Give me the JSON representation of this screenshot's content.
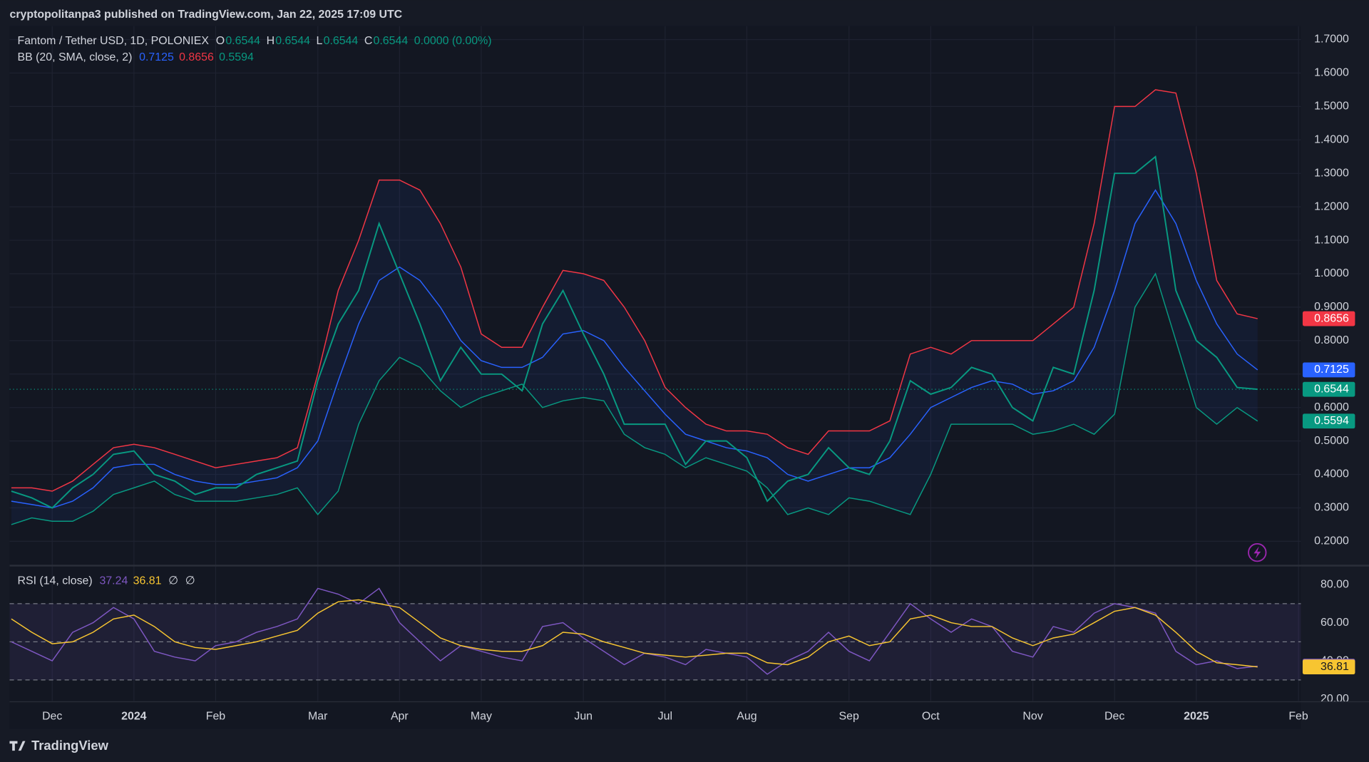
{
  "header": {
    "published": "cryptopolitanpa3 published on TradingView.com, Jan 22, 2025 17:09 UTC"
  },
  "legend": {
    "symbol": "Fantom / Tether USD, 1D, POLONIEX",
    "fields": [
      {
        "label": "O",
        "value": 0.6544
      },
      {
        "label": "H",
        "value": 0.6544
      },
      {
        "label": "L",
        "value": 0.6544
      },
      {
        "label": "C",
        "value": 0.6544
      }
    ],
    "change": "0.0000 (0.00%)",
    "indicator": "BB (20, SMA, close, 2)"
  },
  "rsi_legend": {
    "indicator": "RSI (14, close)",
    "extras": [
      "∅",
      "∅"
    ]
  },
  "footer": {
    "brand": "TradingView"
  },
  "chart_data": [
    {
      "type": "line",
      "ylim": [
        0.13,
        1.74
      ],
      "yticks": [
        {
          "value": 1.7,
          "label": "1.7000"
        },
        {
          "value": 1.6,
          "label": "1.6000"
        },
        {
          "value": 1.5,
          "label": "1.5000"
        },
        {
          "value": 1.4,
          "label": "1.4000"
        },
        {
          "value": 1.3,
          "label": "1.3000"
        },
        {
          "value": 1.2,
          "label": "1.2000"
        },
        {
          "value": 1.1,
          "label": "1.1000"
        },
        {
          "value": 1.0,
          "label": "1.0000"
        },
        {
          "value": 0.9,
          "label": "0.9000"
        },
        {
          "value": 0.8,
          "label": "0.8000"
        },
        {
          "value": 0.7,
          "label": "0.7000"
        },
        {
          "value": 0.6,
          "label": "0.6000"
        },
        {
          "value": 0.5,
          "label": "0.5000"
        },
        {
          "value": 0.4,
          "label": "0.4000"
        },
        {
          "value": 0.3,
          "label": "0.3000"
        },
        {
          "value": 0.2,
          "label": "0.2000"
        }
      ],
      "grid": true,
      "band_fill": "rgba(41,98,255,0.07)",
      "series": [
        {
          "color": "#089981",
          "values": [
            0.35,
            0.33,
            0.3,
            0.36,
            0.4,
            0.46,
            0.47,
            0.4,
            0.38,
            0.34,
            0.36,
            0.36,
            0.4,
            0.42,
            0.44,
            0.68,
            0.85,
            0.95,
            1.15,
            1.0,
            0.85,
            0.68,
            0.78,
            0.7,
            0.7,
            0.65,
            0.85,
            0.95,
            0.82,
            0.7,
            0.55,
            0.55,
            0.55,
            0.43,
            0.5,
            0.5,
            0.45,
            0.32,
            0.38,
            0.4,
            0.48,
            0.42,
            0.4,
            0.5,
            0.68,
            0.64,
            0.66,
            0.72,
            0.7,
            0.6,
            0.56,
            0.72,
            0.7,
            0.95,
            1.3,
            1.3,
            1.35,
            0.95,
            0.8,
            0.75,
            0.66,
            0.6544,
            null,
            null
          ]
        },
        {
          "color": "#f23645",
          "values": [
            0.36,
            0.36,
            0.35,
            0.38,
            0.43,
            0.48,
            0.49,
            0.48,
            0.46,
            0.44,
            0.42,
            0.43,
            0.44,
            0.45,
            0.48,
            0.7,
            0.95,
            1.1,
            1.28,
            1.28,
            1.25,
            1.15,
            1.02,
            0.82,
            0.78,
            0.78,
            0.9,
            1.01,
            1.0,
            0.98,
            0.9,
            0.8,
            0.66,
            0.6,
            0.55,
            0.53,
            0.53,
            0.52,
            0.48,
            0.46,
            0.53,
            0.53,
            0.53,
            0.56,
            0.76,
            0.78,
            0.76,
            0.8,
            0.8,
            0.8,
            0.8,
            0.85,
            0.9,
            1.15,
            1.5,
            1.5,
            1.55,
            1.54,
            1.3,
            0.98,
            0.88,
            0.8656,
            null,
            null
          ]
        },
        {
          "color": "#2962ff",
          "values": [
            0.32,
            0.31,
            0.3,
            0.32,
            0.36,
            0.42,
            0.43,
            0.43,
            0.4,
            0.38,
            0.37,
            0.37,
            0.38,
            0.39,
            0.42,
            0.5,
            0.68,
            0.85,
            0.98,
            1.02,
            0.98,
            0.9,
            0.8,
            0.74,
            0.72,
            0.72,
            0.75,
            0.82,
            0.83,
            0.8,
            0.72,
            0.65,
            0.58,
            0.52,
            0.5,
            0.48,
            0.47,
            0.45,
            0.4,
            0.38,
            0.4,
            0.42,
            0.42,
            0.45,
            0.52,
            0.6,
            0.63,
            0.66,
            0.68,
            0.67,
            0.64,
            0.65,
            0.68,
            0.78,
            0.95,
            1.15,
            1.25,
            1.15,
            0.98,
            0.85,
            0.76,
            0.7125,
            null,
            null
          ]
        },
        {
          "color": "#089981",
          "values": [
            0.25,
            0.27,
            0.26,
            0.26,
            0.29,
            0.34,
            0.36,
            0.38,
            0.34,
            0.32,
            0.32,
            0.32,
            0.33,
            0.34,
            0.36,
            0.28,
            0.35,
            0.55,
            0.68,
            0.75,
            0.72,
            0.65,
            0.6,
            0.63,
            0.65,
            0.67,
            0.6,
            0.62,
            0.63,
            0.62,
            0.52,
            0.48,
            0.46,
            0.42,
            0.45,
            0.43,
            0.41,
            0.36,
            0.28,
            0.3,
            0.28,
            0.33,
            0.32,
            0.3,
            0.28,
            0.4,
            0.55,
            0.55,
            0.55,
            0.55,
            0.52,
            0.53,
            0.55,
            0.52,
            0.58,
            0.9,
            1.0,
            0.8,
            0.6,
            0.55,
            0.6,
            0.5594,
            null,
            null
          ]
        }
      ]
    },
    {
      "type": "line",
      "categories": [
        null,
        null,
        "Dec",
        null,
        null,
        null,
        "2024",
        null,
        null,
        null,
        "Feb",
        null,
        null,
        null,
        null,
        "Mar",
        null,
        null,
        null,
        "Apr",
        null,
        null,
        null,
        "May",
        null,
        null,
        null,
        null,
        "Jun",
        null,
        null,
        null,
        "Jul",
        null,
        null,
        null,
        "Aug",
        null,
        null,
        null,
        null,
        "Sep",
        null,
        null,
        null,
        "Oct",
        null,
        null,
        null,
        null,
        "Nov",
        null,
        null,
        null,
        "Dec",
        null,
        null,
        null,
        "2025",
        null,
        null,
        null,
        null,
        "Feb"
      ],
      "ylim": [
        19,
        89.5
      ],
      "yticks": [
        {
          "value": 80,
          "label": "80.00"
        },
        {
          "value": 60,
          "label": "60.00"
        },
        {
          "value": 40,
          "label": "40.00"
        },
        {
          "value": 20,
          "label": "20.00"
        }
      ],
      "levels": [
        70,
        50,
        30
      ],
      "band_fill": "rgba(126,87,194,0.12)",
      "series": [
        {
          "color": "#7e57c2",
          "values": [
            50,
            45,
            40,
            55,
            60,
            68,
            62,
            45,
            42,
            40,
            48,
            50,
            55,
            58,
            62,
            78,
            75,
            70,
            78,
            60,
            50,
            40,
            48,
            45,
            42,
            40,
            58,
            60,
            52,
            45,
            38,
            44,
            42,
            38,
            46,
            44,
            42,
            33,
            40,
            45,
            55,
            45,
            40,
            55,
            70,
            62,
            55,
            62,
            58,
            45,
            42,
            58,
            55,
            65,
            70,
            68,
            65,
            45,
            38,
            40,
            36,
            37.24,
            null,
            null
          ]
        },
        {
          "color": "#f7c531",
          "values": [
            62,
            55,
            49,
            50,
            55,
            62,
            64,
            58,
            50,
            47,
            46,
            48,
            50,
            53,
            56,
            65,
            71,
            72,
            70,
            68,
            60,
            52,
            48,
            46,
            45,
            45,
            48,
            55,
            54,
            50,
            47,
            44,
            43,
            42,
            43,
            44,
            44,
            39,
            38,
            42,
            50,
            53,
            48,
            50,
            62,
            64,
            60,
            58,
            58,
            52,
            48,
            52,
            54,
            60,
            66,
            68,
            64,
            55,
            45,
            39,
            38,
            36.81,
            null,
            null
          ]
        }
      ]
    }
  ]
}
